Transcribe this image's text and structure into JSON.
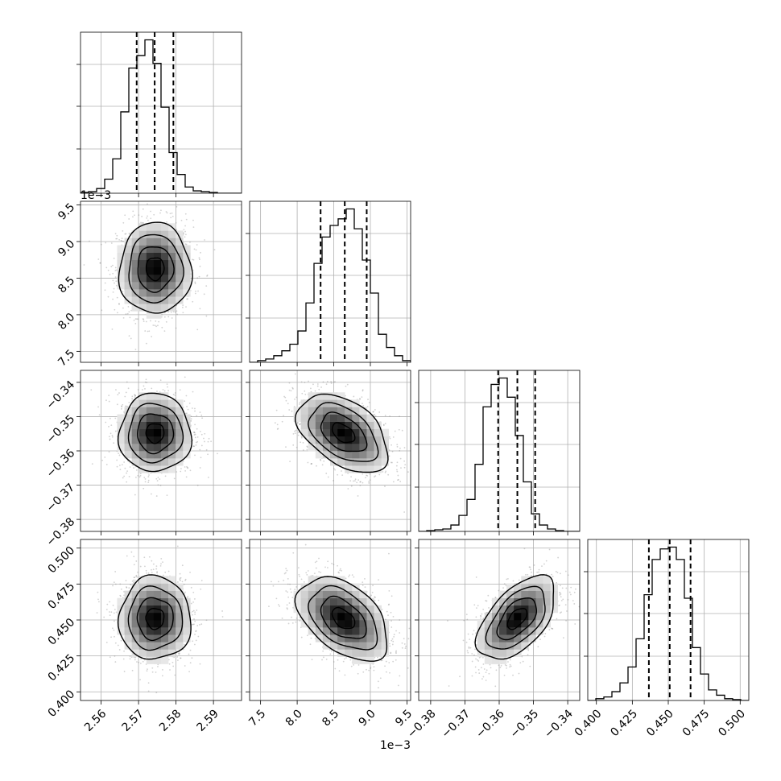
{
  "chart_data": {
    "type": "corner",
    "parameters": [
      {
        "name": "",
        "range": [
          2.5545,
          2.5975
        ],
        "ticks": [
          "2.56",
          "2.57",
          "2.58",
          "2.59"
        ],
        "tick_values": [
          2.56,
          2.57,
          2.58,
          2.59
        ],
        "offset_label": "",
        "quantiles": [
          2.5695,
          2.5743,
          2.5793
        ]
      },
      {
        "name": "",
        "range": [
          7.35,
          9.55
        ],
        "ticks": [
          "7.5",
          "8.0",
          "8.5",
          "9.0",
          "9.5"
        ],
        "tick_values": [
          7.5,
          8.0,
          8.5,
          9.0,
          9.5
        ],
        "offset_label": "1e−3",
        "quantiles": [
          8.32,
          8.65,
          8.95
        ]
      },
      {
        "name": "",
        "range": [
          -0.3835,
          -0.3365
        ],
        "ticks": [
          "−0.38",
          "−0.37",
          "−0.36",
          "−0.35",
          "−0.34"
        ],
        "tick_values": [
          -0.38,
          -0.37,
          -0.36,
          -0.35,
          -0.34
        ],
        "offset_label": "",
        "quantiles": [
          -0.3603,
          -0.3547,
          -0.3495
        ]
      },
      {
        "name": "",
        "range": [
          0.394,
          0.506
        ],
        "ticks": [
          "0.400",
          "0.425",
          "0.450",
          "0.475",
          "0.500"
        ],
        "tick_values": [
          0.4,
          0.425,
          0.45,
          0.475,
          0.5
        ],
        "offset_label": "",
        "quantiles": [
          0.4365,
          0.451,
          0.4655
        ]
      }
    ],
    "histograms": [
      [
        0.005,
        0.01,
        0.03,
        0.09,
        0.22,
        0.52,
        0.8,
        0.88,
        0.98,
        0.83,
        0.55,
        0.26,
        0.12,
        0.04,
        0.015,
        0.01,
        0.005,
        0,
        0,
        0
      ],
      [
        0,
        0.01,
        0.02,
        0.04,
        0.07,
        0.11,
        0.19,
        0.36,
        0.6,
        0.76,
        0.83,
        0.87,
        0.93,
        0.81,
        0.62,
        0.42,
        0.17,
        0.09,
        0.04,
        0.01
      ],
      [
        0,
        0.005,
        0.01,
        0.015,
        0.04,
        0.1,
        0.2,
        0.42,
        0.78,
        0.92,
        0.96,
        0.84,
        0.6,
        0.31,
        0.11,
        0.04,
        0.015,
        0.005,
        0,
        0
      ],
      [
        0,
        0.01,
        0.02,
        0.05,
        0.1,
        0.19,
        0.35,
        0.6,
        0.8,
        0.86,
        0.87,
        0.8,
        0.58,
        0.3,
        0.15,
        0.06,
        0.03,
        0.01,
        0.005,
        0
      ]
    ],
    "pairs": [
      {
        "x": 0,
        "y": 1,
        "mean": [
          2.5744,
          8.63
        ],
        "sd": [
          0.0048,
          0.31
        ],
        "rho": 0.0
      },
      {
        "x": 0,
        "y": 2,
        "mean": [
          2.5744,
          -0.3548
        ],
        "sd": [
          0.0048,
          0.0057
        ],
        "rho": 0.0
      },
      {
        "x": 1,
        "y": 2,
        "mean": [
          8.63,
          -0.3548
        ],
        "sd": [
          0.31,
          0.0057
        ],
        "rho": -0.45
      },
      {
        "x": 0,
        "y": 3,
        "mean": [
          2.5744,
          0.451
        ],
        "sd": [
          0.0048,
          0.0145
        ],
        "rho": 0.0
      },
      {
        "x": 1,
        "y": 3,
        "mean": [
          8.63,
          0.451
        ],
        "sd": [
          0.31,
          0.0145
        ],
        "rho": -0.45
      },
      {
        "x": 2,
        "y": 3,
        "mean": [
          -0.3548,
          0.451
        ],
        "sd": [
          0.0057,
          0.0145
        ],
        "rho": 0.55
      }
    ],
    "contour_levels": [
      0.5,
      1.0,
      1.5,
      2.0
    ],
    "colors": {
      "line": "#000000",
      "grid": "#b0b0b0",
      "points": "#7f7f7f",
      "density_max": "#000000"
    },
    "grid": true
  }
}
